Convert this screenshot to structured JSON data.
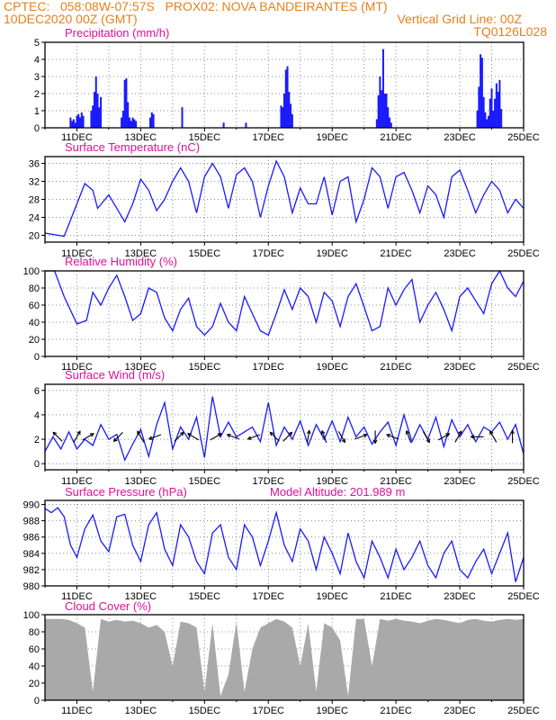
{
  "header": {
    "line1_left": "CPTEC:   058:08W-07:57S   PROX02: NOVA BANDEIRANTES (MT)",
    "line2_left": "10DEC2020 00Z (GMT)",
    "line2_right": "Vertical Grid Line: 00Z",
    "line3_right": "TQ0126L028"
  },
  "colors": {
    "header": "#e8801a",
    "title": "#e0109a",
    "series": "#1a1aff",
    "cloud": "#a9a9a9",
    "grid": "#8c8c8c",
    "arrow": "#000000"
  },
  "x_ticks": [
    "11DEC",
    "13DEC",
    "15DEC",
    "17DEC",
    "19DEC",
    "21DEC",
    "23DEC",
    "25DEC"
  ],
  "chart_data": [
    {
      "id": "precip",
      "type": "bar",
      "title": "Precipitation (mm/h)",
      "ylim": [
        0,
        5
      ],
      "yticks": [
        "0",
        "1",
        "2",
        "3",
        "4",
        "5"
      ],
      "show_xticks": true,
      "x_days": [
        0.8,
        0.85,
        0.9,
        0.95,
        1.0,
        1.05,
        1.1,
        1.15,
        1.2,
        1.45,
        1.5,
        1.55,
        1.6,
        1.65,
        1.7,
        1.75,
        2.4,
        2.45,
        2.5,
        2.55,
        2.6,
        2.65,
        2.7,
        2.75,
        2.8,
        2.85,
        3.3,
        3.35,
        3.4,
        4.3,
        5.6,
        6.3,
        7.4,
        7.45,
        7.5,
        7.55,
        7.6,
        7.65,
        7.7,
        7.75,
        10.4,
        10.45,
        10.5,
        10.55,
        10.6,
        10.65,
        10.7,
        10.75,
        10.8,
        10.85,
        13.55,
        13.6,
        13.65,
        13.7,
        13.75,
        13.8,
        13.85,
        13.9,
        13.95,
        14.0,
        14.05,
        14.1,
        14.15,
        14.2,
        14.25,
        14.3
      ],
      "values": [
        0.6,
        0.4,
        0.5,
        0.3,
        0.7,
        0.8,
        0.6,
        0.9,
        0.7,
        1.0,
        1.3,
        2.1,
        3.0,
        2.0,
        1.2,
        1.8,
        0.6,
        1.0,
        2.8,
        2.9,
        1.5,
        0.6,
        0.4,
        0.6,
        0.5,
        0.4,
        0.6,
        0.9,
        0.8,
        1.2,
        0.3,
        0.3,
        1.3,
        1.2,
        2.0,
        3.4,
        3.6,
        2.1,
        1.4,
        0.8,
        0.5,
        1.9,
        3.0,
        2.2,
        4.6,
        2.0,
        2.0,
        1.2,
        0.6,
        0.3,
        1.0,
        2.4,
        4.3,
        4.1,
        1.8,
        0.9,
        0.5,
        0.7,
        1.7,
        2.3,
        1.0,
        1.7,
        2.6,
        2.1,
        2.8,
        1.1
      ]
    },
    {
      "id": "temp",
      "type": "line",
      "title": "Surface Temperature (nC)",
      "ylim": [
        18.5,
        37.5
      ],
      "yticks": [
        "20",
        "24",
        "28",
        "32",
        "36"
      ],
      "ytick_vals": [
        20,
        24,
        28,
        32,
        36
      ],
      "show_xticks": true,
      "x_days": [
        0.0,
        0.6,
        1.0,
        1.25,
        1.5,
        1.65,
        2.0,
        2.5,
        2.75,
        3.0,
        3.25,
        3.5,
        3.75,
        4.0,
        4.25,
        4.5,
        4.75,
        5.0,
        5.25,
        5.5,
        5.75,
        6.0,
        6.25,
        6.5,
        6.75,
        7.0,
        7.25,
        7.5,
        7.75,
        8.0,
        8.25,
        8.5,
        8.75,
        9.0,
        9.25,
        9.5,
        9.75,
        10.0,
        10.25,
        10.5,
        10.75,
        11.0,
        11.25,
        11.5,
        11.75,
        12.0,
        12.25,
        12.5,
        12.75,
        13.0,
        13.25,
        13.5,
        13.75,
        14.0,
        14.25,
        14.5,
        14.75,
        15.0
      ],
      "values": [
        20.5,
        19.8,
        27.0,
        31.5,
        30.0,
        26.0,
        29.0,
        23.0,
        27.0,
        32.5,
        30.0,
        25.5,
        28.0,
        32.0,
        35.0,
        32.0,
        25.0,
        33.0,
        36.0,
        33.0,
        26.0,
        33.5,
        35.0,
        32.0,
        24.0,
        31.0,
        36.5,
        33.0,
        25.0,
        30.5,
        27.0,
        27.0,
        33.0,
        24.5,
        32.0,
        33.0,
        23.0,
        28.0,
        35.0,
        33.0,
        26.0,
        33.0,
        34.0,
        30.0,
        25.0,
        31.0,
        29.0,
        24.0,
        33.0,
        34.5,
        30.0,
        25.0,
        29.0,
        32.0,
        30.0,
        25.0,
        28.0,
        26.0
      ]
    },
    {
      "id": "rh",
      "type": "line",
      "title": "Relative Humidity (%)",
      "ylim": [
        0,
        100
      ],
      "yticks": [
        "0",
        "20",
        "40",
        "60",
        "80",
        "100"
      ],
      "ytick_vals": [
        0,
        20,
        40,
        60,
        80,
        100
      ],
      "show_xticks": true,
      "x_days": [
        0.0,
        0.3,
        0.6,
        1.0,
        1.3,
        1.5,
        1.75,
        2.0,
        2.25,
        2.5,
        2.75,
        3.0,
        3.25,
        3.5,
        3.75,
        4.0,
        4.25,
        4.5,
        4.75,
        5.0,
        5.25,
        5.5,
        5.75,
        6.0,
        6.25,
        6.5,
        6.75,
        7.0,
        7.25,
        7.5,
        7.75,
        8.0,
        8.25,
        8.5,
        8.75,
        9.0,
        9.25,
        9.5,
        9.75,
        10.0,
        10.25,
        10.5,
        10.75,
        11.0,
        11.25,
        11.5,
        11.75,
        12.0,
        12.25,
        12.5,
        12.75,
        13.0,
        13.25,
        13.5,
        13.75,
        14.0,
        14.25,
        14.5,
        14.75,
        15.0
      ],
      "values": [
        100,
        100,
        70,
        38,
        42,
        75,
        60,
        80,
        95,
        70,
        42,
        50,
        80,
        75,
        45,
        30,
        55,
        68,
        35,
        25,
        35,
        62,
        40,
        30,
        70,
        50,
        30,
        25,
        50,
        78,
        55,
        80,
        70,
        40,
        75,
        65,
        35,
        70,
        85,
        58,
        30,
        35,
        80,
        60,
        78,
        90,
        40,
        60,
        75,
        55,
        30,
        70,
        80,
        65,
        50,
        85,
        100,
        80,
        70,
        88
      ]
    },
    {
      "id": "wind",
      "type": "line",
      "title": "Surface Wind (m/s)",
      "ylim": [
        -0.5,
        6.5
      ],
      "yticks": [
        "0",
        "2",
        "4",
        "6"
      ],
      "ytick_vals": [
        0,
        2,
        4,
        6
      ],
      "show_xticks": true,
      "x_days": [
        0.0,
        0.25,
        0.5,
        0.75,
        1.0,
        1.25,
        1.5,
        1.75,
        2.0,
        2.25,
        2.5,
        2.75,
        3.0,
        3.25,
        3.5,
        3.75,
        4.0,
        4.25,
        4.5,
        4.75,
        5.0,
        5.25,
        5.5,
        5.75,
        6.0,
        6.25,
        6.5,
        6.75,
        7.0,
        7.25,
        7.5,
        7.75,
        8.0,
        8.25,
        8.5,
        8.75,
        9.0,
        9.25,
        9.5,
        9.75,
        10.0,
        10.25,
        10.5,
        10.75,
        11.0,
        11.25,
        11.5,
        11.75,
        12.0,
        12.25,
        12.5,
        12.75,
        13.0,
        13.25,
        13.5,
        13.75,
        14.0,
        14.25,
        14.5,
        14.75,
        15.0
      ],
      "values": [
        1.0,
        2.2,
        1.2,
        2.6,
        1.2,
        2.0,
        1.5,
        3.2,
        2.0,
        2.4,
        0.3,
        1.6,
        2.8,
        0.6,
        3.2,
        5.0,
        1.2,
        3.0,
        2.0,
        3.8,
        0.5,
        5.5,
        2.2,
        3.4,
        2.2,
        2.6,
        3.0,
        1.8,
        5.0,
        1.5,
        3.0,
        2.0,
        3.5,
        1.5,
        3.2,
        2.0,
        3.5,
        1.8,
        3.8,
        2.2,
        3.0,
        1.6,
        2.6,
        3.4,
        1.5,
        4.0,
        1.8,
        3.2,
        2.0,
        3.8,
        1.4,
        3.6,
        2.2,
        3.2,
        1.8,
        3.0,
        2.6,
        3.4,
        2.0,
        3.2,
        0.8
      ],
      "arrows_x_days": [
        0.4,
        1.0,
        1.35,
        2.3,
        3.0,
        3.45,
        4.2,
        4.65,
        5.35,
        5.9,
        6.55,
        7.2,
        7.6,
        8.25,
        8.75,
        9.3,
        9.9,
        10.35,
        10.9,
        11.4,
        11.95,
        12.5,
        12.95,
        13.55,
        14.05,
        14.65
      ],
      "arrows_dir_deg": [
        135,
        60,
        30,
        225,
        120,
        200,
        45,
        150,
        30,
        160,
        200,
        135,
        45,
        80,
        110,
        300,
        20,
        270,
        160,
        110,
        300,
        30,
        60,
        180,
        120,
        90
      ]
    },
    {
      "id": "pressure",
      "type": "line",
      "title": "Surface Pressure (hPa)",
      "subtitle": "Model Altitude: 201.989 m",
      "ylim": [
        980,
        990.5
      ],
      "yticks": [
        "980",
        "982",
        "984",
        "986",
        "988",
        "990"
      ],
      "ytick_vals": [
        980,
        982,
        984,
        986,
        988,
        990
      ],
      "show_xticks": true,
      "x_days": [
        0.0,
        0.2,
        0.4,
        0.6,
        0.8,
        1.0,
        1.25,
        1.5,
        1.75,
        2.0,
        2.25,
        2.5,
        2.75,
        3.0,
        3.25,
        3.5,
        3.75,
        4.0,
        4.25,
        4.5,
        4.75,
        5.0,
        5.25,
        5.5,
        5.75,
        6.0,
        6.25,
        6.5,
        6.75,
        7.0,
        7.25,
        7.5,
        7.75,
        8.0,
        8.25,
        8.5,
        8.75,
        9.0,
        9.25,
        9.5,
        9.75,
        10.0,
        10.25,
        10.5,
        10.75,
        11.0,
        11.25,
        11.5,
        11.75,
        12.0,
        12.25,
        12.5,
        12.75,
        13.0,
        13.25,
        13.5,
        13.75,
        14.0,
        14.25,
        14.5,
        14.75,
        15.0
      ],
      "values": [
        989.5,
        989.0,
        989.6,
        988.5,
        985.0,
        983.5,
        987.0,
        988.7,
        985.5,
        984.2,
        988.5,
        988.8,
        985.0,
        983.0,
        987.5,
        989.0,
        984.5,
        982.5,
        987.5,
        986.0,
        983.0,
        981.5,
        986.5,
        987.5,
        983.5,
        982.0,
        987.5,
        986.0,
        982.5,
        985.5,
        989.0,
        985.0,
        983.0,
        987.0,
        985.5,
        982.0,
        986.0,
        984.0,
        981.5,
        986.5,
        983.0,
        981.0,
        985.5,
        983.5,
        981.0,
        984.5,
        982.0,
        983.5,
        985.5,
        982.5,
        981.0,
        984.0,
        985.5,
        982.0,
        981.0,
        983.0,
        984.5,
        981.5,
        984.0,
        986.5,
        980.5,
        983.5
      ]
    },
    {
      "id": "cloud",
      "type": "area",
      "title": "Cloud Cover (%)",
      "ylim": [
        0,
        100
      ],
      "yticks": [
        "0",
        "20",
        "40",
        "60",
        "80",
        "100"
      ],
      "ytick_vals": [
        0,
        20,
        40,
        60,
        80,
        100
      ],
      "show_xticks": true,
      "x_days": [
        0.0,
        0.25,
        0.5,
        0.75,
        1.0,
        1.25,
        1.5,
        1.75,
        2.0,
        2.25,
        2.5,
        2.75,
        3.0,
        3.25,
        3.5,
        3.75,
        4.0,
        4.25,
        4.5,
        4.75,
        5.0,
        5.25,
        5.5,
        5.75,
        6.0,
        6.25,
        6.5,
        6.75,
        7.0,
        7.25,
        7.5,
        7.75,
        8.0,
        8.25,
        8.5,
        8.75,
        9.0,
        9.25,
        9.5,
        9.75,
        10.0,
        10.25,
        10.5,
        10.75,
        11.0,
        11.25,
        11.5,
        11.75,
        12.0,
        12.25,
        12.5,
        12.75,
        13.0,
        13.25,
        13.5,
        13.75,
        14.0,
        14.25,
        14.5,
        14.75,
        15.0
      ],
      "values": [
        95,
        95,
        95,
        94,
        90,
        85,
        10,
        95,
        92,
        94,
        92,
        93,
        90,
        85,
        88,
        80,
        40,
        92,
        90,
        85,
        10,
        90,
        5,
        30,
        92,
        10,
        60,
        85,
        90,
        95,
        92,
        85,
        40,
        90,
        10,
        90,
        85,
        70,
        5,
        95,
        95,
        40,
        95,
        93,
        95,
        93,
        92,
        90,
        93,
        95,
        94,
        92,
        90,
        94,
        95,
        93,
        92,
        94,
        95,
        94,
        95
      ]
    }
  ]
}
